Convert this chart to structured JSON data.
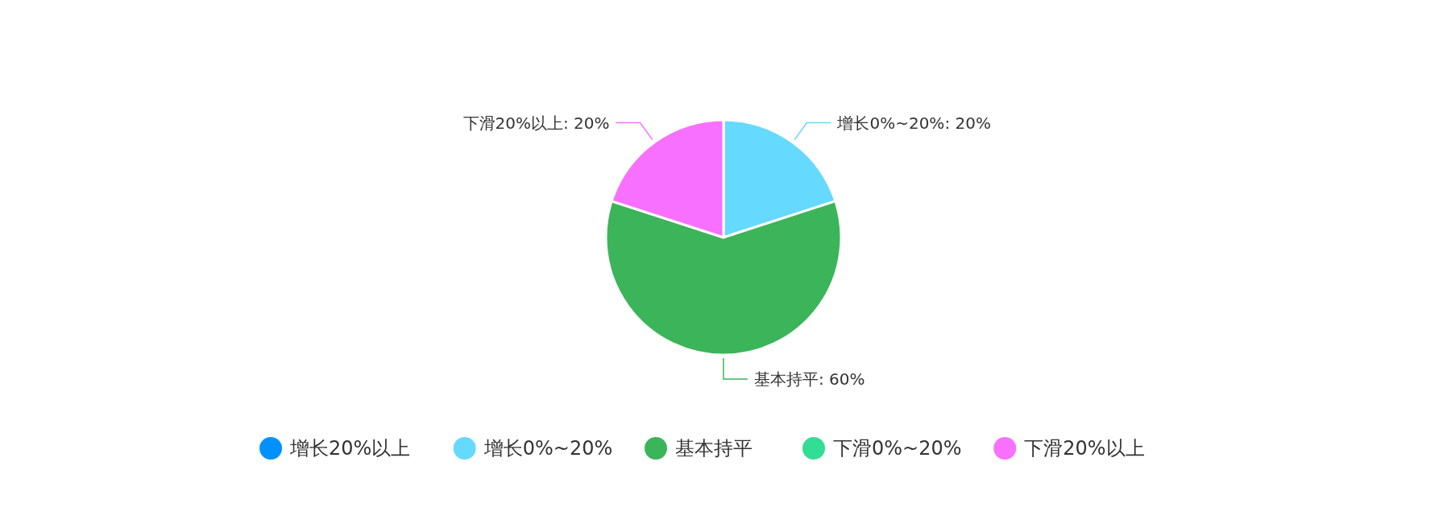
{
  "chart_data": {
    "type": "pie",
    "categories": [
      "增长20%以上",
      "增长0%~20%",
      "基本持平",
      "下滑0%~20%",
      "下滑20%以上"
    ],
    "values": [
      0,
      20,
      60,
      0,
      20
    ],
    "colors": [
      "#0091ff",
      "#66d9ff",
      "#3bb45a",
      "#33dd93",
      "#f870ff"
    ],
    "value_labels": [
      null,
      "增长0%~20%: 20%",
      "基本持平: 60%",
      null,
      "下滑20%以上: 20%"
    ],
    "legend": "bottom"
  }
}
